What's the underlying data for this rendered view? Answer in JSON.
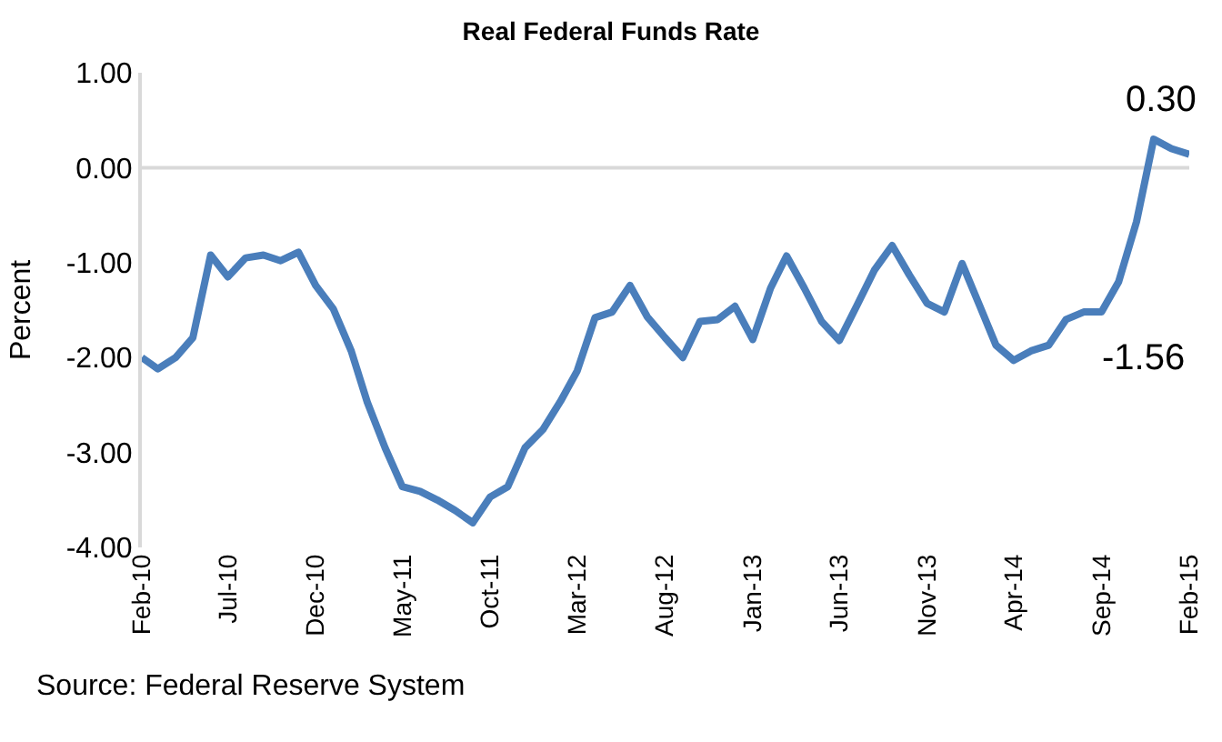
{
  "chart_data": {
    "type": "line",
    "title": "Real Federal Funds Rate",
    "ylabel": "Percent",
    "x": [
      "2010-02",
      "2010-03",
      "2010-04",
      "2010-05",
      "2010-06",
      "2010-07",
      "2010-08",
      "2010-09",
      "2010-10",
      "2010-11",
      "2010-12",
      "2011-01",
      "2011-02",
      "2011-03",
      "2011-04",
      "2011-05",
      "2011-06",
      "2011-07",
      "2011-08",
      "2011-09",
      "2011-10",
      "2011-11",
      "2011-12",
      "2012-01",
      "2012-02",
      "2012-03",
      "2012-04",
      "2012-05",
      "2012-06",
      "2012-07",
      "2012-08",
      "2012-09",
      "2012-10",
      "2012-11",
      "2012-12",
      "2013-01",
      "2013-02",
      "2013-03",
      "2013-04",
      "2013-05",
      "2013-06",
      "2013-07",
      "2013-08",
      "2013-09",
      "2013-10",
      "2013-11",
      "2013-12",
      "2014-01",
      "2014-02",
      "2014-03",
      "2014-04",
      "2014-05",
      "2014-06",
      "2014-07",
      "2014-08",
      "2014-09",
      "2014-10",
      "2014-11",
      "2014-12",
      "2015-01",
      "2015-02"
    ],
    "series": [
      {
        "color": "#4a7ebb",
        "values": [
          -2.0,
          -2.12,
          -2.0,
          -1.79,
          -0.92,
          -1.15,
          -0.95,
          -0.92,
          -0.98,
          -0.89,
          -1.24,
          -1.49,
          -1.93,
          -2.47,
          -2.95,
          -3.36,
          -3.41,
          -3.5,
          -3.61,
          -3.74,
          -3.47,
          -3.36,
          -2.95,
          -2.76,
          -2.46,
          -2.14,
          -1.58,
          -1.52,
          -1.24,
          -1.57,
          -1.79,
          -2.0,
          -1.62,
          -1.6,
          -1.46,
          -1.81,
          -1.27,
          -0.93,
          -1.27,
          -1.62,
          -1.82,
          -1.46,
          -1.08,
          -0.82,
          -1.13,
          -1.43,
          -1.52,
          -1.01,
          -1.46,
          -1.87,
          -2.03,
          -1.93,
          -1.87,
          -1.6,
          -1.52,
          -1.52,
          -1.2,
          -0.57,
          0.3,
          0.2,
          0.14
        ]
      }
    ],
    "ylim": [
      -4,
      1
    ],
    "yticks": [
      {
        "value": -4,
        "label": "-4.00"
      },
      {
        "value": -3,
        "label": "-3.00"
      },
      {
        "value": -2,
        "label": "-2.00"
      },
      {
        "value": -1,
        "label": "-1.00"
      },
      {
        "value": 0,
        "label": "0.00"
      },
      {
        "value": 1,
        "label": "1.00"
      }
    ],
    "xlim": [
      "2010-02",
      "2015-02"
    ],
    "xticks": [
      {
        "value": "2010-02",
        "label": "Feb-10"
      },
      {
        "value": "2010-07",
        "label": "Jul-10"
      },
      {
        "value": "2010-12",
        "label": "Dec-10"
      },
      {
        "value": "2011-05",
        "label": "May-11"
      },
      {
        "value": "2011-10",
        "label": "Oct-11"
      },
      {
        "value": "2012-03",
        "label": "Mar-12"
      },
      {
        "value": "2012-08",
        "label": "Aug-12"
      },
      {
        "value": "2013-01",
        "label": "Jan-13"
      },
      {
        "value": "2013-06",
        "label": "Jun-13"
      },
      {
        "value": "2013-11",
        "label": "Nov-13"
      },
      {
        "value": "2014-04",
        "label": "Apr-14"
      },
      {
        "value": "2014-09",
        "label": "Sep-14"
      },
      {
        "value": "2015-02",
        "label": "Feb-15"
      }
    ],
    "ref_lines": [
      {
        "axis": "y",
        "value": 0,
        "color": "#d9d9d9"
      }
    ],
    "annotations": [
      {
        "text": "0.30",
        "x": "2015-01",
        "y": 0.3
      },
      "-1.56",
      "Source: Federal Reserve System"
    ],
    "marker": "none",
    "line_style": "solid"
  }
}
